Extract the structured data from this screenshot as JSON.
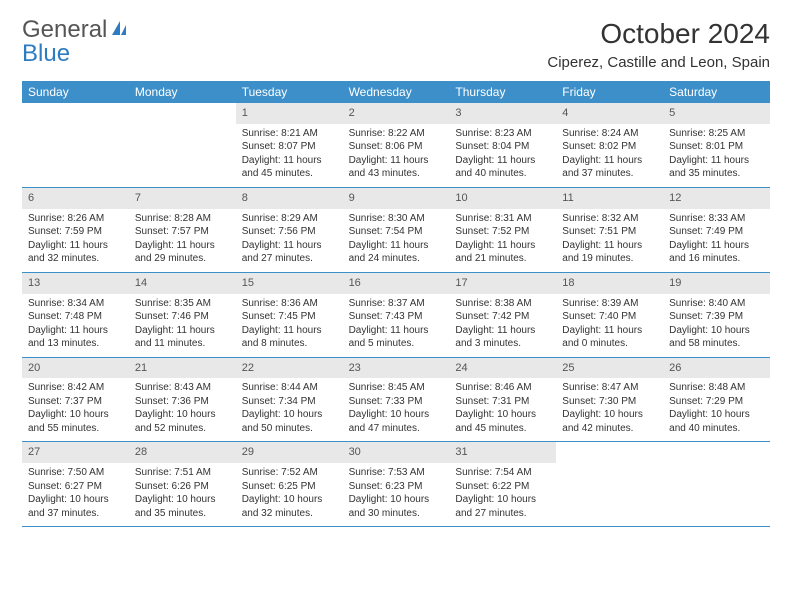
{
  "brand": {
    "word1": "General",
    "word2": "Blue"
  },
  "title": "October 2024",
  "location": "Ciperez, Castille and Leon, Spain",
  "colors": {
    "header_bg": "#3d8fc9",
    "header_text": "#ffffff",
    "datebar_bg": "#e8e8e8",
    "datebar_text": "#555555",
    "body_text": "#333333",
    "rule": "#3d8fc9",
    "brand_gray": "#555555",
    "brand_blue": "#2d7cc1",
    "page_bg": "#ffffff"
  },
  "fonts": {
    "title_size_pt": 21,
    "location_size_pt": 11,
    "dayheader_size_pt": 9,
    "date_size_pt": 8,
    "cell_size_pt": 7.5
  },
  "day_names": [
    "Sunday",
    "Monday",
    "Tuesday",
    "Wednesday",
    "Thursday",
    "Friday",
    "Saturday"
  ],
  "weeks": [
    [
      null,
      null,
      {
        "date": "1",
        "sunrise": "Sunrise: 8:21 AM",
        "sunset": "Sunset: 8:07 PM",
        "daylight": "Daylight: 11 hours and 45 minutes."
      },
      {
        "date": "2",
        "sunrise": "Sunrise: 8:22 AM",
        "sunset": "Sunset: 8:06 PM",
        "daylight": "Daylight: 11 hours and 43 minutes."
      },
      {
        "date": "3",
        "sunrise": "Sunrise: 8:23 AM",
        "sunset": "Sunset: 8:04 PM",
        "daylight": "Daylight: 11 hours and 40 minutes."
      },
      {
        "date": "4",
        "sunrise": "Sunrise: 8:24 AM",
        "sunset": "Sunset: 8:02 PM",
        "daylight": "Daylight: 11 hours and 37 minutes."
      },
      {
        "date": "5",
        "sunrise": "Sunrise: 8:25 AM",
        "sunset": "Sunset: 8:01 PM",
        "daylight": "Daylight: 11 hours and 35 minutes."
      }
    ],
    [
      {
        "date": "6",
        "sunrise": "Sunrise: 8:26 AM",
        "sunset": "Sunset: 7:59 PM",
        "daylight": "Daylight: 11 hours and 32 minutes."
      },
      {
        "date": "7",
        "sunrise": "Sunrise: 8:28 AM",
        "sunset": "Sunset: 7:57 PM",
        "daylight": "Daylight: 11 hours and 29 minutes."
      },
      {
        "date": "8",
        "sunrise": "Sunrise: 8:29 AM",
        "sunset": "Sunset: 7:56 PM",
        "daylight": "Daylight: 11 hours and 27 minutes."
      },
      {
        "date": "9",
        "sunrise": "Sunrise: 8:30 AM",
        "sunset": "Sunset: 7:54 PM",
        "daylight": "Daylight: 11 hours and 24 minutes."
      },
      {
        "date": "10",
        "sunrise": "Sunrise: 8:31 AM",
        "sunset": "Sunset: 7:52 PM",
        "daylight": "Daylight: 11 hours and 21 minutes."
      },
      {
        "date": "11",
        "sunrise": "Sunrise: 8:32 AM",
        "sunset": "Sunset: 7:51 PM",
        "daylight": "Daylight: 11 hours and 19 minutes."
      },
      {
        "date": "12",
        "sunrise": "Sunrise: 8:33 AM",
        "sunset": "Sunset: 7:49 PM",
        "daylight": "Daylight: 11 hours and 16 minutes."
      }
    ],
    [
      {
        "date": "13",
        "sunrise": "Sunrise: 8:34 AM",
        "sunset": "Sunset: 7:48 PM",
        "daylight": "Daylight: 11 hours and 13 minutes."
      },
      {
        "date": "14",
        "sunrise": "Sunrise: 8:35 AM",
        "sunset": "Sunset: 7:46 PM",
        "daylight": "Daylight: 11 hours and 11 minutes."
      },
      {
        "date": "15",
        "sunrise": "Sunrise: 8:36 AM",
        "sunset": "Sunset: 7:45 PM",
        "daylight": "Daylight: 11 hours and 8 minutes."
      },
      {
        "date": "16",
        "sunrise": "Sunrise: 8:37 AM",
        "sunset": "Sunset: 7:43 PM",
        "daylight": "Daylight: 11 hours and 5 minutes."
      },
      {
        "date": "17",
        "sunrise": "Sunrise: 8:38 AM",
        "sunset": "Sunset: 7:42 PM",
        "daylight": "Daylight: 11 hours and 3 minutes."
      },
      {
        "date": "18",
        "sunrise": "Sunrise: 8:39 AM",
        "sunset": "Sunset: 7:40 PM",
        "daylight": "Daylight: 11 hours and 0 minutes."
      },
      {
        "date": "19",
        "sunrise": "Sunrise: 8:40 AM",
        "sunset": "Sunset: 7:39 PM",
        "daylight": "Daylight: 10 hours and 58 minutes."
      }
    ],
    [
      {
        "date": "20",
        "sunrise": "Sunrise: 8:42 AM",
        "sunset": "Sunset: 7:37 PM",
        "daylight": "Daylight: 10 hours and 55 minutes."
      },
      {
        "date": "21",
        "sunrise": "Sunrise: 8:43 AM",
        "sunset": "Sunset: 7:36 PM",
        "daylight": "Daylight: 10 hours and 52 minutes."
      },
      {
        "date": "22",
        "sunrise": "Sunrise: 8:44 AM",
        "sunset": "Sunset: 7:34 PM",
        "daylight": "Daylight: 10 hours and 50 minutes."
      },
      {
        "date": "23",
        "sunrise": "Sunrise: 8:45 AM",
        "sunset": "Sunset: 7:33 PM",
        "daylight": "Daylight: 10 hours and 47 minutes."
      },
      {
        "date": "24",
        "sunrise": "Sunrise: 8:46 AM",
        "sunset": "Sunset: 7:31 PM",
        "daylight": "Daylight: 10 hours and 45 minutes."
      },
      {
        "date": "25",
        "sunrise": "Sunrise: 8:47 AM",
        "sunset": "Sunset: 7:30 PM",
        "daylight": "Daylight: 10 hours and 42 minutes."
      },
      {
        "date": "26",
        "sunrise": "Sunrise: 8:48 AM",
        "sunset": "Sunset: 7:29 PM",
        "daylight": "Daylight: 10 hours and 40 minutes."
      }
    ],
    [
      {
        "date": "27",
        "sunrise": "Sunrise: 7:50 AM",
        "sunset": "Sunset: 6:27 PM",
        "daylight": "Daylight: 10 hours and 37 minutes."
      },
      {
        "date": "28",
        "sunrise": "Sunrise: 7:51 AM",
        "sunset": "Sunset: 6:26 PM",
        "daylight": "Daylight: 10 hours and 35 minutes."
      },
      {
        "date": "29",
        "sunrise": "Sunrise: 7:52 AM",
        "sunset": "Sunset: 6:25 PM",
        "daylight": "Daylight: 10 hours and 32 minutes."
      },
      {
        "date": "30",
        "sunrise": "Sunrise: 7:53 AM",
        "sunset": "Sunset: 6:23 PM",
        "daylight": "Daylight: 10 hours and 30 minutes."
      },
      {
        "date": "31",
        "sunrise": "Sunrise: 7:54 AM",
        "sunset": "Sunset: 6:22 PM",
        "daylight": "Daylight: 10 hours and 27 minutes."
      },
      null,
      null
    ]
  ]
}
